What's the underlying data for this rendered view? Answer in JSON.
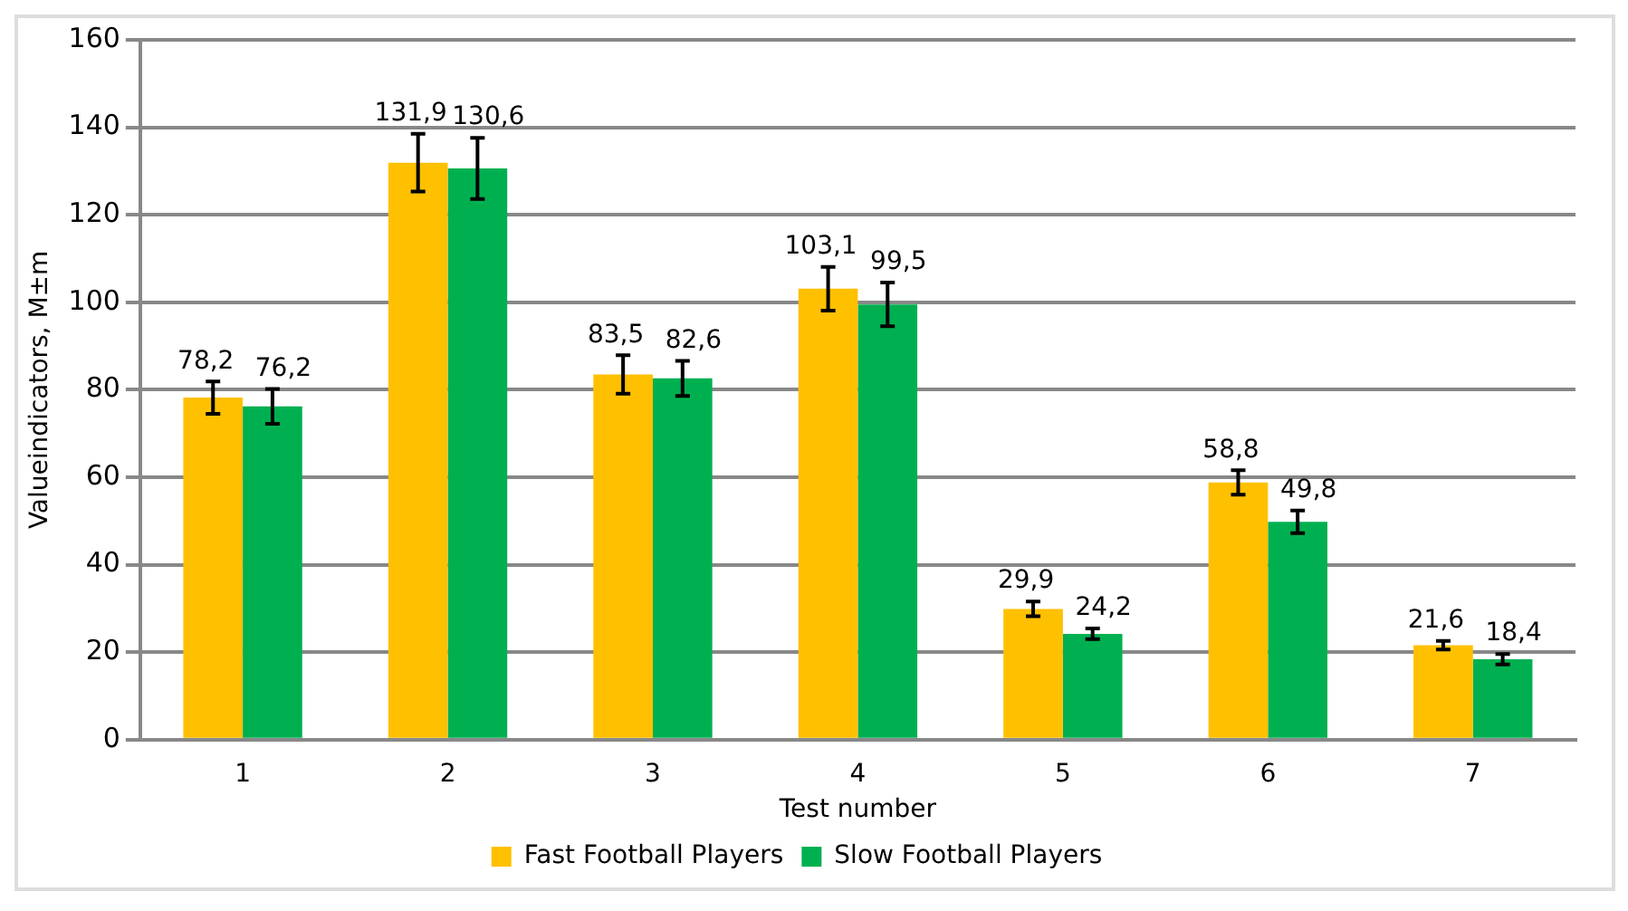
{
  "chart_data": {
    "type": "bar",
    "xlabel": "Test number",
    "ylabel": "Valueindicators, M±m",
    "categories": [
      "1",
      "2",
      "3",
      "4",
      "5",
      "6",
      "7"
    ],
    "series": [
      {
        "name": "Fast Football Players",
        "color": "#ffc000",
        "values": [
          78.2,
          131.9,
          83.5,
          103.1,
          29.9,
          58.8,
          21.6
        ],
        "errors": [
          3.7,
          6.6,
          4.4,
          5,
          1.7,
          2.8,
          1
        ],
        "value_labels": [
          "78,2",
          "131,9",
          "83,5",
          "103,1",
          "29,9",
          "58,8",
          "21,6"
        ]
      },
      {
        "name": "Slow Football Players",
        "color": "#00b050",
        "values": [
          76.2,
          130.6,
          82.6,
          99.5,
          24.2,
          49.8,
          18.4
        ],
        "errors": [
          4,
          7,
          4,
          5,
          1.2,
          2.6,
          1.2
        ],
        "value_labels": [
          "76,2",
          "130,6",
          "82,6",
          "99,5",
          "24,2",
          "49,8",
          "18,4"
        ]
      }
    ],
    "ylim": [
      0,
      160
    ],
    "yticks": [
      0,
      20,
      40,
      60,
      80,
      100,
      120,
      140,
      160
    ],
    "grid": "y",
    "legend": "bottom"
  }
}
